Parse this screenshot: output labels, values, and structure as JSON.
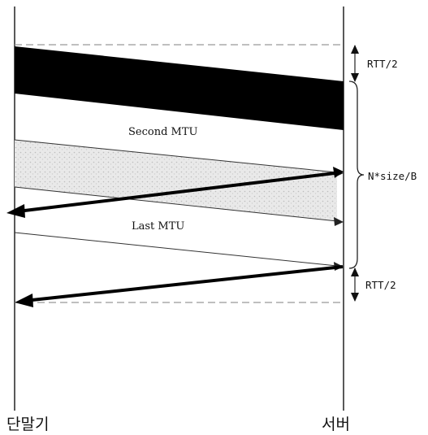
{
  "labels": {
    "second_mtu": "Second MTU",
    "last_mtu": "Last MTU",
    "rtt_top": "RTT/2",
    "transfer": "N*size/B",
    "rtt_bottom": "RTT/2"
  },
  "nodes": {
    "terminal": "단말기",
    "server": "서버"
  },
  "colors": {
    "ink": "#111111",
    "band_dark": "#000000",
    "band_light": "#e6e6e6",
    "dashed": "#9a9a9a"
  }
}
